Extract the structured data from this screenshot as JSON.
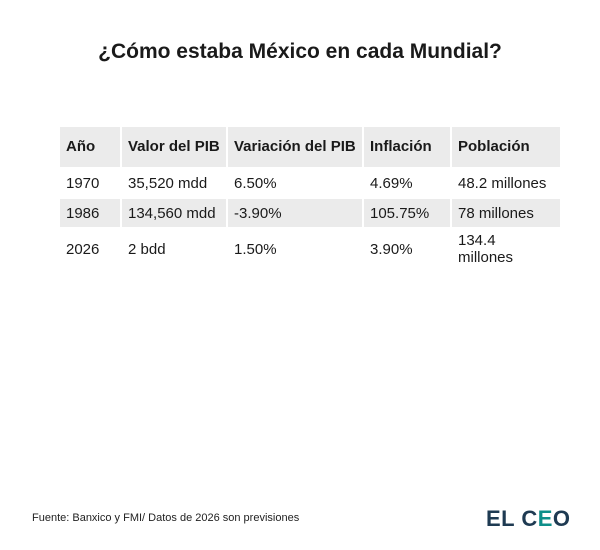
{
  "title": "¿Cómo estaba México en cada Mundial?",
  "table": {
    "headers": [
      "Año",
      "Valor del PIB",
      "Variación del PIB",
      "Inflación",
      "Población"
    ],
    "rows": [
      [
        "1970",
        "35,520 mdd",
        "6.50%",
        "4.69%",
        "48.2 millones"
      ],
      [
        "1986",
        "134,560 mdd",
        "-3.90%",
        "105.75%",
        "78 millones"
      ],
      [
        "2026",
        "2 bdd",
        "1.50%",
        "3.90%",
        "134.4 millones"
      ]
    ]
  },
  "footer": {
    "source": "Fuente: Banxico y FMI/ Datos de 2026 son previsiones",
    "logo_prefix": "EL C",
    "logo_accent": "E",
    "logo_suffix": "O"
  },
  "colors": {
    "header_background": "#ebebeb",
    "logo_dark": "#1e3a52",
    "logo_accent": "#0f8f8a"
  }
}
